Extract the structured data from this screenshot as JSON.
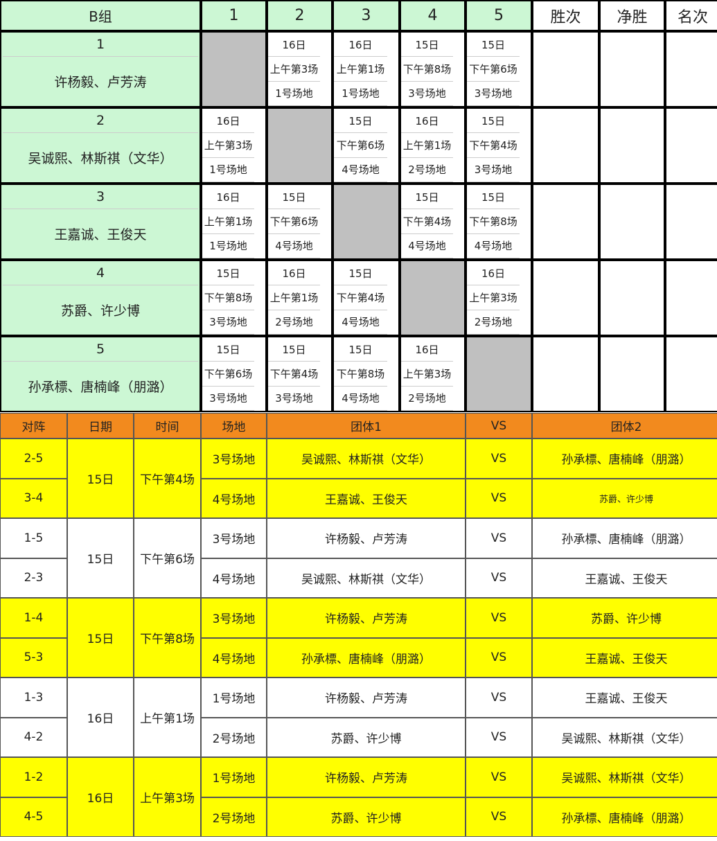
{
  "header": {
    "title": "B组",
    "columns": [
      "1",
      "2",
      "3",
      "4",
      "5"
    ],
    "stats": [
      "胜次",
      "净胜",
      "名次"
    ]
  },
  "teams": [
    {
      "number": "1",
      "name": "许杨毅、卢芳涛",
      "schedule": [
        null,
        {
          "date": "16日",
          "time": "上午第3场",
          "venue": "1号场地"
        },
        {
          "date": "16日",
          "time": "上午第1场",
          "venue": "1号场地"
        },
        {
          "date": "15日",
          "time": "下午第8场",
          "venue": "3号场地"
        },
        {
          "date": "15日",
          "time": "下午第6场",
          "venue": "3号场地"
        }
      ]
    },
    {
      "number": "2",
      "name": "吴诚熙、林斯祺（文华）",
      "schedule": [
        {
          "date": "16日",
          "time": "上午第3场",
          "venue": "1号场地"
        },
        null,
        {
          "date": "15日",
          "time": "下午第6场",
          "venue": "4号场地"
        },
        {
          "date": "16日",
          "time": "上午第1场",
          "venue": "2号场地"
        },
        {
          "date": "15日",
          "time": "下午第4场",
          "venue": "3号场地"
        }
      ]
    },
    {
      "number": "3",
      "name": "王嘉诚、王俊天",
      "schedule": [
        {
          "date": "16日",
          "time": "上午第1场",
          "venue": "1号场地"
        },
        {
          "date": "15日",
          "time": "下午第6场",
          "venue": "4号场地"
        },
        null,
        {
          "date": "15日",
          "time": "下午第4场",
          "venue": "4号场地"
        },
        {
          "date": "15日",
          "time": "下午第8场",
          "venue": "4号场地"
        }
      ]
    },
    {
      "number": "4",
      "name": "苏爵、许少博",
      "schedule": [
        {
          "date": "15日",
          "time": "下午第8场",
          "venue": "3号场地"
        },
        {
          "date": "16日",
          "time": "上午第1场",
          "venue": "2号场地"
        },
        {
          "date": "15日",
          "time": "下午第4场",
          "venue": "4号场地"
        },
        null,
        {
          "date": "16日",
          "time": "上午第3场",
          "venue": "2号场地"
        }
      ]
    },
    {
      "number": "5",
      "name": "孙承標、唐楠峰（朋潞）",
      "schedule": [
        {
          "date": "15日",
          "time": "下午第6场",
          "venue": "3号场地"
        },
        {
          "date": "15日",
          "time": "下午第4场",
          "venue": "3号场地"
        },
        {
          "date": "15日",
          "time": "下午第8场",
          "venue": "4号场地"
        },
        {
          "date": "16日",
          "time": "上午第3场",
          "venue": "2号场地"
        },
        null
      ]
    }
  ],
  "matches": {
    "columns": [
      "对阵",
      "日期",
      "时间",
      "场地",
      "团体1",
      "VS",
      "团体2"
    ],
    "groups": [
      {
        "date": "15日",
        "time": "下午第4场",
        "rows": [
          {
            "pair": "2-5",
            "venue": "3号场地",
            "team1": "吴诚熙、林斯祺（文华）",
            "vs": "VS",
            "team2": "孙承標、唐楠峰（朋潞）"
          },
          {
            "pair": "3-4",
            "venue": "4号场地",
            "team1": "王嘉诚、王俊天",
            "vs": "VS",
            "team2": "苏爵、许少博"
          }
        ]
      },
      {
        "date": "15日",
        "time": "下午第6场",
        "rows": [
          {
            "pair": "1-5",
            "venue": "3号场地",
            "team1": "许杨毅、卢芳涛",
            "vs": "VS",
            "team2": "孙承標、唐楠峰（朋潞）"
          },
          {
            "pair": "2-3",
            "venue": "4号场地",
            "team1": "吴诚熙、林斯祺（文华）",
            "vs": "VS",
            "team2": "王嘉诚、王俊天"
          }
        ]
      },
      {
        "date": "15日",
        "time": "下午第8场",
        "rows": [
          {
            "pair": "1-4",
            "venue": "3号场地",
            "team1": "许杨毅、卢芳涛",
            "vs": "VS",
            "team2": "苏爵、许少博"
          },
          {
            "pair": "5-3",
            "venue": "4号场地",
            "team1": "孙承標、唐楠峰（朋潞）",
            "vs": "VS",
            "team2": "王嘉诚、王俊天"
          }
        ]
      },
      {
        "date": "16日",
        "time": "上午第1场",
        "rows": [
          {
            "pair": "1-3",
            "venue": "1号场地",
            "team1": "许杨毅、卢芳涛",
            "vs": "VS",
            "team2": "王嘉诚、王俊天"
          },
          {
            "pair": "4-2",
            "venue": "2号场地",
            "team1": "苏爵、许少博",
            "vs": "VS",
            "team2": "吴诚熙、林斯祺（文华）"
          }
        ]
      },
      {
        "date": "16日",
        "time": "上午第3场",
        "rows": [
          {
            "pair": "1-2",
            "venue": "1号场地",
            "team1": "许杨毅、卢芳涛",
            "vs": "VS",
            "team2": "吴诚熙、林斯祺（文华）"
          },
          {
            "pair": "4-5",
            "venue": "2号场地",
            "team1": "苏爵、许少博",
            "vs": "VS",
            "team2": "孙承標、唐楠峰（朋潞）"
          }
        ]
      }
    ]
  }
}
